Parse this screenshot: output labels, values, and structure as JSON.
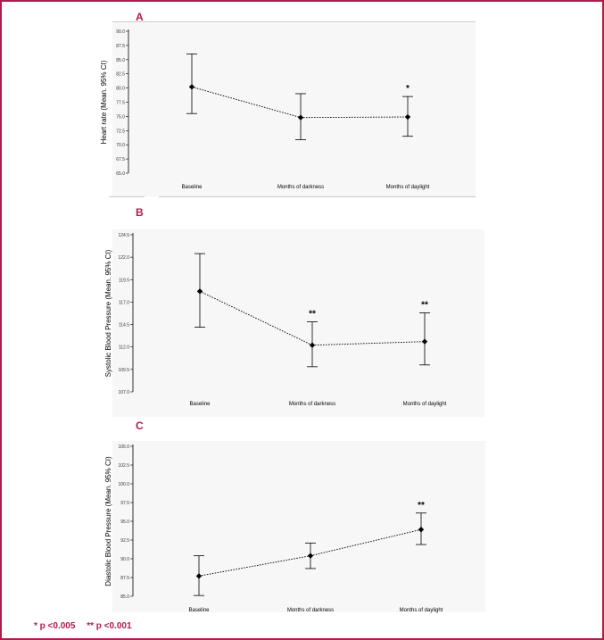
{
  "footnote": {
    "single": "* p <0.005",
    "double": "** p <0.001"
  },
  "colors": {
    "accent": "#b01c4a",
    "line": "#000000",
    "plot_bg": "#f7f7f7"
  },
  "chart_data": [
    {
      "panel": "A",
      "type": "line",
      "ylabel": "Heart rate (Mean. 95% CI)",
      "categories": [
        "Baseline",
        "Months of darkness",
        "Months of daylight"
      ],
      "values": [
        80.2,
        74.8,
        74.9
      ],
      "ci_low": [
        75.5,
        70.9,
        71.5
      ],
      "ci_high": [
        86.0,
        79.0,
        78.5
      ],
      "significance": [
        "",
        "",
        "*"
      ],
      "ylim": [
        65.0,
        90.0
      ],
      "yticks": [
        "90.0",
        "87.5",
        "85.0",
        "82.5",
        "80.0",
        "77.5",
        "75.0",
        "72.5",
        "70.0",
        "67.5",
        "65.0"
      ],
      "grid": false
    },
    {
      "panel": "B",
      "type": "line",
      "ylabel": "Systolic Blood Pressure (Mean. 95% CI)",
      "categories": [
        "Baseline",
        "Months of darkness",
        "Months of daylight"
      ],
      "values": [
        118.2,
        112.2,
        112.6
      ],
      "ci_low": [
        114.2,
        109.8,
        110.0
      ],
      "ci_high": [
        122.4,
        114.8,
        115.8
      ],
      "significance": [
        "",
        "**",
        "**"
      ],
      "ylim": [
        107.0,
        124.5
      ],
      "yticks": [
        "124.5",
        "122.0",
        "119.5",
        "117.0",
        "114.5",
        "112.0",
        "109.5",
        "107.0"
      ],
      "grid": false
    },
    {
      "panel": "C",
      "type": "line",
      "ylabel": "Diastolic Blood Pressure (Mean. 95% CI)",
      "categories": [
        "Baseline",
        "Months of darkness",
        "Months of daylight"
      ],
      "values": [
        87.7,
        90.4,
        93.9
      ],
      "ci_low": [
        85.1,
        88.7,
        91.9
      ],
      "ci_high": [
        90.4,
        92.1,
        96.1
      ],
      "significance": [
        "",
        "",
        "**"
      ],
      "ylim": [
        85.0,
        105.0
      ],
      "yticks": [
        "105.0",
        "102.5",
        "100.0",
        "97.5",
        "95.0",
        "92.5",
        "90.0",
        "87.5",
        "85.0"
      ],
      "grid": false
    }
  ]
}
